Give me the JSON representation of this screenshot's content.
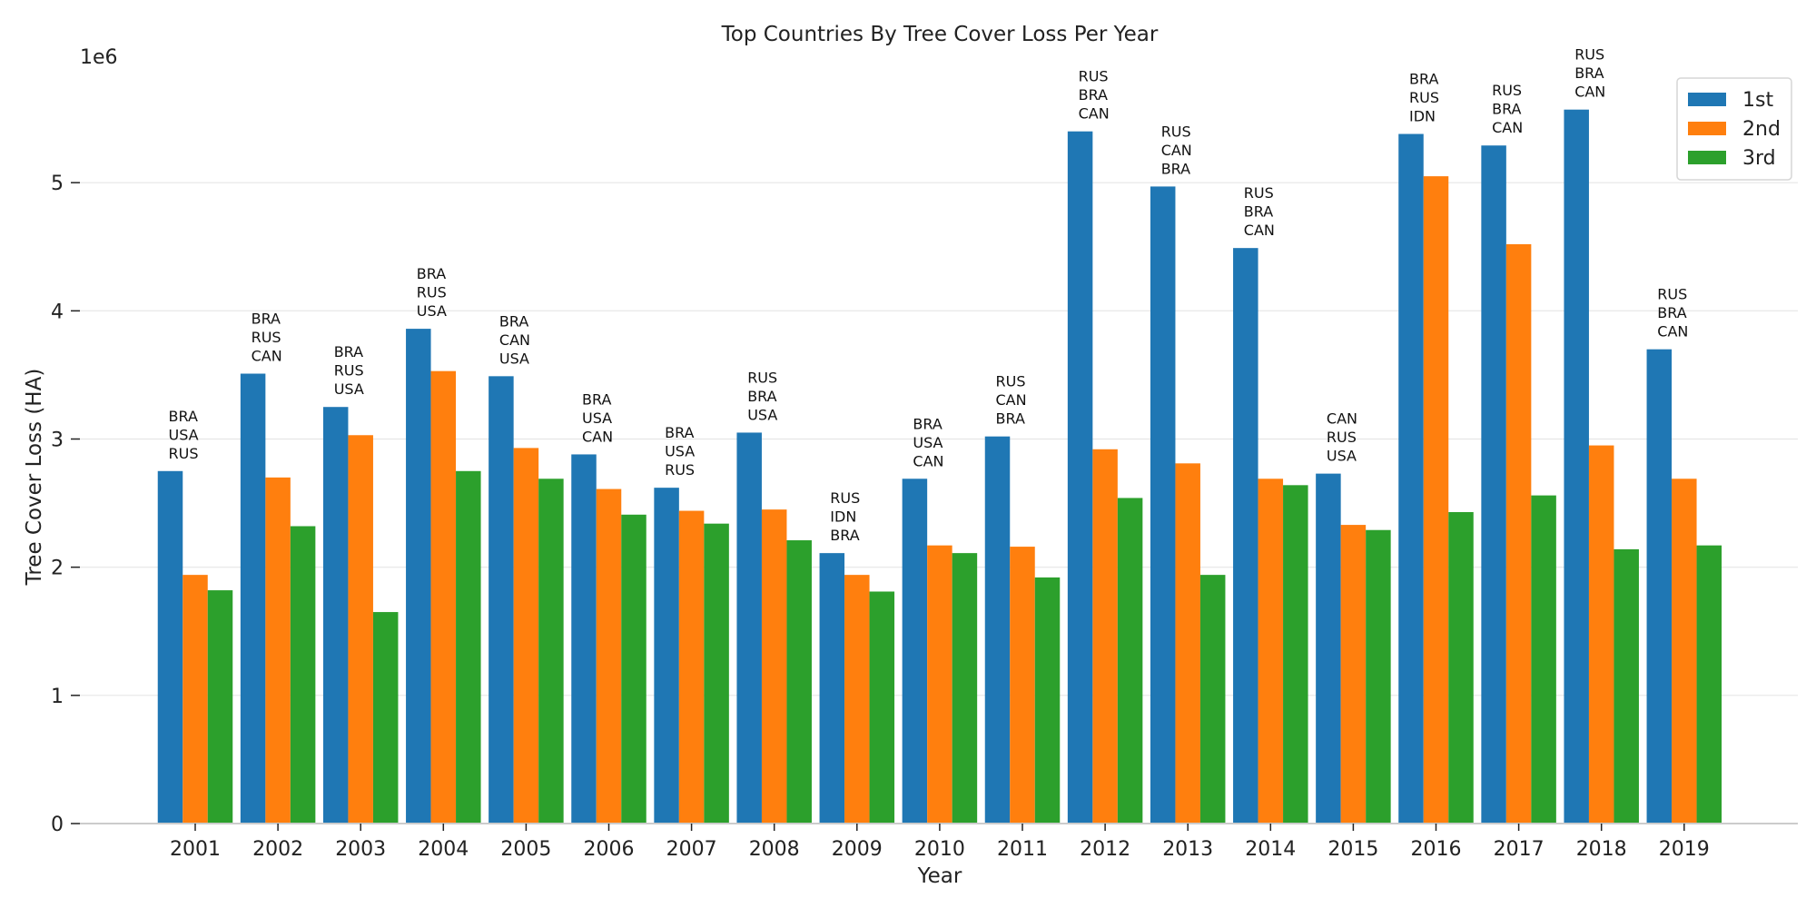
{
  "chart_data": {
    "type": "bar",
    "title": "Top Countries By Tree Cover Loss Per Year",
    "xlabel": "Year",
    "ylabel": "Tree Cover Loss (HA)",
    "y_offset_label": "1e6",
    "ylim": [
      0,
      6000000
    ],
    "yticks": [
      0,
      1000000,
      2000000,
      3000000,
      4000000,
      5000000
    ],
    "ytick_labels": [
      "0",
      "1",
      "2",
      "3",
      "4",
      "5"
    ],
    "grid": "horizontal",
    "legend_position": "top-right",
    "categories": [
      "2001",
      "2002",
      "2003",
      "2004",
      "2005",
      "2006",
      "2007",
      "2008",
      "2009",
      "2010",
      "2011",
      "2012",
      "2013",
      "2014",
      "2015",
      "2016",
      "2017",
      "2018",
      "2019"
    ],
    "series": [
      {
        "name": "1st",
        "color": "#1f77b4",
        "values": [
          2750000,
          3510000,
          3250000,
          3860000,
          3490000,
          2880000,
          2620000,
          3050000,
          2110000,
          2690000,
          3020000,
          5400000,
          4970000,
          4490000,
          2730000,
          5380000,
          5290000,
          5570000,
          3700000
        ]
      },
      {
        "name": "2nd",
        "color": "#ff7f0e",
        "values": [
          1940000,
          2700000,
          3030000,
          3530000,
          2930000,
          2610000,
          2440000,
          2450000,
          1940000,
          2170000,
          2160000,
          2920000,
          2810000,
          2690000,
          2330000,
          5050000,
          4520000,
          2950000,
          2690000
        ]
      },
      {
        "name": "3rd",
        "color": "#2ca02c",
        "values": [
          1820000,
          2320000,
          1650000,
          2750000,
          2690000,
          2410000,
          2340000,
          2210000,
          1810000,
          2110000,
          1920000,
          2540000,
          1940000,
          2640000,
          2290000,
          2430000,
          2560000,
          2140000,
          2170000
        ]
      }
    ],
    "annotations": [
      [
        "BRA",
        "USA",
        "RUS"
      ],
      [
        "BRA",
        "RUS",
        "CAN"
      ],
      [
        "BRA",
        "RUS",
        "USA"
      ],
      [
        "BRA",
        "RUS",
        "USA"
      ],
      [
        "BRA",
        "CAN",
        "USA"
      ],
      [
        "BRA",
        "USA",
        "CAN"
      ],
      [
        "BRA",
        "USA",
        "RUS"
      ],
      [
        "RUS",
        "BRA",
        "USA"
      ],
      [
        "RUS",
        "IDN",
        "BRA"
      ],
      [
        "BRA",
        "USA",
        "CAN"
      ],
      [
        "RUS",
        "CAN",
        "BRA"
      ],
      [
        "RUS",
        "BRA",
        "CAN"
      ],
      [
        "RUS",
        "CAN",
        "BRA"
      ],
      [
        "RUS",
        "BRA",
        "CAN"
      ],
      [
        "CAN",
        "RUS",
        "USA"
      ],
      [
        "BRA",
        "RUS",
        "IDN"
      ],
      [
        "RUS",
        "BRA",
        "CAN"
      ],
      [
        "RUS",
        "BRA",
        "CAN"
      ],
      [
        "RUS",
        "BRA",
        "CAN"
      ]
    ]
  }
}
